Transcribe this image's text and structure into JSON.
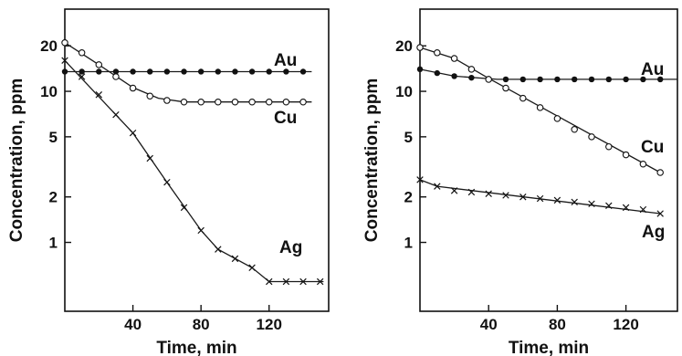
{
  "chart_data": [
    {
      "type": "line",
      "panel": "left",
      "title": "",
      "xlabel": "Time, min",
      "ylabel": "Concentration, ppm",
      "xlim": [
        0,
        155
      ],
      "ylim": [
        0.35,
        35
      ],
      "yscale": "log",
      "grid": false,
      "x_ticks": [
        40,
        80,
        120
      ],
      "x_tick_labels": [
        "40",
        "80",
        "120"
      ],
      "y_ticks": [
        1,
        2,
        5,
        10,
        20
      ],
      "y_tick_labels": [
        "1",
        "2",
        "5",
        "10",
        "20"
      ],
      "series": [
        {
          "name": "Au",
          "marker": "filled-circle",
          "points": [
            [
              0,
              13.5
            ],
            [
              10,
              13.5
            ],
            [
              20,
              13.5
            ],
            [
              30,
              13.5
            ],
            [
              40,
              13.5
            ],
            [
              50,
              13.5
            ],
            [
              60,
              13.5
            ],
            [
              70,
              13.5
            ],
            [
              80,
              13.5
            ],
            [
              90,
              13.5
            ],
            [
              100,
              13.5
            ],
            [
              110,
              13.5
            ],
            [
              120,
              13.5
            ],
            [
              130,
              13.5
            ],
            [
              140,
              13.5
            ]
          ],
          "line": [
            [
              0,
              13.5
            ],
            [
              145,
              13.5
            ]
          ]
        },
        {
          "name": "Cu",
          "marker": "open-circle",
          "points": [
            [
              0,
              21
            ],
            [
              10,
              18
            ],
            [
              20,
              15
            ],
            [
              30,
              12.5
            ],
            [
              40,
              10.5
            ],
            [
              50,
              9.3
            ],
            [
              60,
              8.7
            ],
            [
              70,
              8.5
            ],
            [
              80,
              8.5
            ],
            [
              90,
              8.5
            ],
            [
              100,
              8.5
            ],
            [
              110,
              8.5
            ],
            [
              120,
              8.5
            ],
            [
              130,
              8.5
            ],
            [
              140,
              8.5
            ]
          ],
          "line": [
            [
              0,
              21
            ],
            [
              20,
              15
            ],
            [
              40,
              10.6
            ],
            [
              55,
              9.0
            ],
            [
              70,
              8.5
            ],
            [
              145,
              8.5
            ]
          ]
        },
        {
          "name": "Ag",
          "marker": "x",
          "points": [
            [
              0,
              16
            ],
            [
              10,
              12.5
            ],
            [
              20,
              9.5
            ],
            [
              30,
              7
            ],
            [
              40,
              5.3
            ],
            [
              50,
              3.6
            ],
            [
              60,
              2.5
            ],
            [
              70,
              1.7
            ],
            [
              80,
              1.2
            ],
            [
              90,
              0.9
            ],
            [
              100,
              0.78
            ],
            [
              110,
              0.68
            ],
            [
              120,
              0.55
            ],
            [
              130,
              0.55
            ],
            [
              140,
              0.55
            ],
            [
              150,
              0.55
            ]
          ],
          "line": [
            [
              0,
              16
            ],
            [
              40,
              5.3
            ],
            [
              60,
              2.5
            ],
            [
              80,
              1.2
            ],
            [
              90,
              0.9
            ],
            [
              110,
              0.68
            ],
            [
              120,
              0.55
            ],
            [
              152,
              0.55
            ]
          ]
        }
      ]
    },
    {
      "type": "line",
      "panel": "right",
      "title": "",
      "xlabel": "Time, min",
      "ylabel": "Concentration, ppm",
      "xlim": [
        0,
        150
      ],
      "ylim": [
        0.35,
        35
      ],
      "yscale": "log",
      "grid": false,
      "x_ticks": [
        40,
        80,
        120
      ],
      "x_tick_labels": [
        "40",
        "80",
        "120"
      ],
      "y_ticks": [
        1,
        2,
        5,
        10,
        20
      ],
      "y_tick_labels": [
        "1",
        "2",
        "5",
        "10",
        "20"
      ],
      "series": [
        {
          "name": "Au",
          "marker": "filled-circle",
          "points": [
            [
              0,
              14
            ],
            [
              10,
              13.2
            ],
            [
              20,
              12.6
            ],
            [
              30,
              12.3
            ],
            [
              40,
              12.1
            ],
            [
              50,
              12
            ],
            [
              60,
              12
            ],
            [
              70,
              12
            ],
            [
              80,
              12
            ],
            [
              90,
              12
            ],
            [
              100,
              12
            ],
            [
              110,
              12
            ],
            [
              120,
              12
            ],
            [
              130,
              12
            ],
            [
              140,
              12
            ]
          ],
          "line": [
            [
              0,
              14
            ],
            [
              20,
              12.6
            ],
            [
              45,
              12
            ],
            [
              150,
              12
            ]
          ]
        },
        {
          "name": "Cu",
          "marker": "open-circle",
          "points": [
            [
              0,
              19.5
            ],
            [
              10,
              18
            ],
            [
              20,
              16.5
            ],
            [
              30,
              14
            ],
            [
              40,
              12
            ],
            [
              50,
              10.5
            ],
            [
              60,
              9
            ],
            [
              70,
              7.8
            ],
            [
              80,
              6.6
            ],
            [
              90,
              5.6
            ],
            [
              100,
              5.0
            ],
            [
              110,
              4.3
            ],
            [
              120,
              3.8
            ],
            [
              130,
              3.3
            ],
            [
              140,
              2.9
            ]
          ],
          "line": [
            [
              0,
              19.5
            ],
            [
              20,
              16.5
            ],
            [
              40,
              12.2
            ],
            [
              140,
              2.9
            ]
          ]
        },
        {
          "name": "Ag",
          "marker": "x",
          "points": [
            [
              0,
              2.6
            ],
            [
              10,
              2.35
            ],
            [
              20,
              2.2
            ],
            [
              30,
              2.15
            ],
            [
              40,
              2.1
            ],
            [
              50,
              2.05
            ],
            [
              60,
              2.0
            ],
            [
              70,
              1.95
            ],
            [
              80,
              1.9
            ],
            [
              90,
              1.85
            ],
            [
              100,
              1.8
            ],
            [
              110,
              1.75
            ],
            [
              120,
              1.7
            ],
            [
              130,
              1.65
            ],
            [
              140,
              1.55
            ]
          ],
          "line": [
            [
              0,
              2.6
            ],
            [
              10,
              2.35
            ],
            [
              140,
              1.55
            ]
          ]
        }
      ]
    }
  ]
}
